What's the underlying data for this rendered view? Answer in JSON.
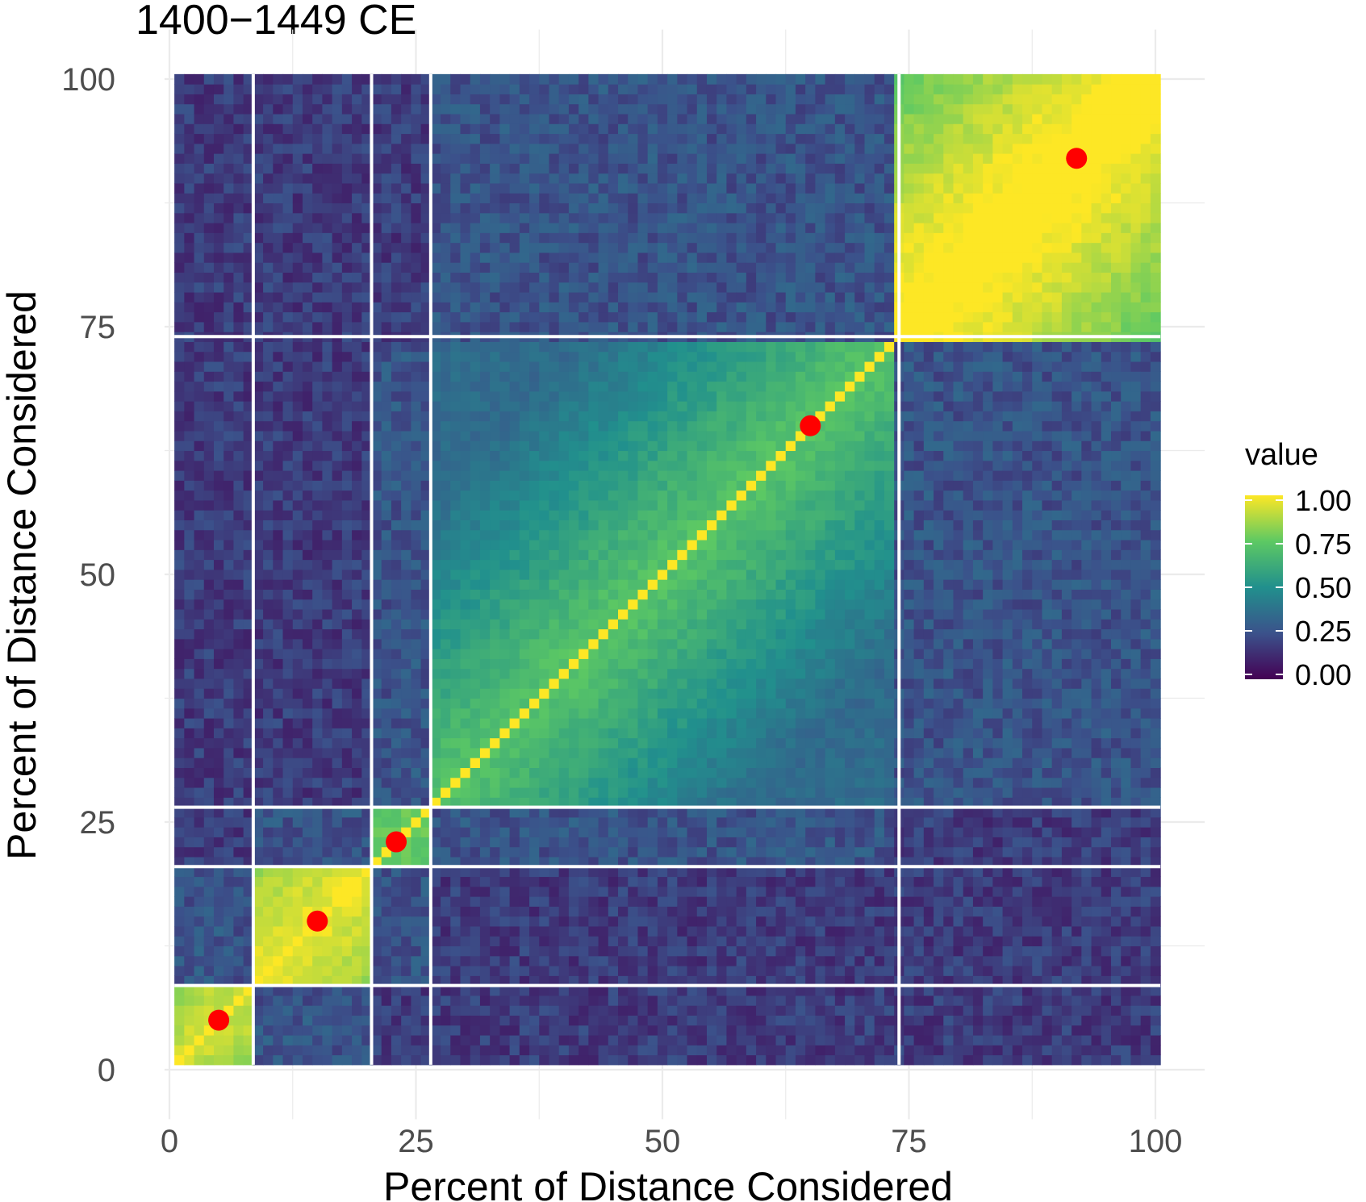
{
  "chart_data": {
    "type": "heatmap",
    "title": "1400−1449 CE",
    "xlabel": "Percent of Distance Considered",
    "ylabel": "Percent of Distance Considered",
    "xlim": [
      0,
      100
    ],
    "ylim": [
      0,
      100
    ],
    "x_ticks": [
      "0",
      "25",
      "50",
      "75",
      "100"
    ],
    "y_ticks": [
      "0",
      "25",
      "50",
      "75",
      "100"
    ],
    "grid": true,
    "cell_range": [
      1,
      100
    ],
    "segment_boundaries": [
      8.5,
      20.5,
      26.5,
      74
    ],
    "column_boundaries": [
      8.5,
      20.5,
      26.5,
      74
    ],
    "row_boundaries": [
      8.5,
      20.5,
      26.5,
      74
    ],
    "blocks": [
      {
        "range": [
          1,
          8.5
        ],
        "within_value": 0.75
      },
      {
        "range": [
          8.5,
          20.5
        ],
        "within_value": 0.8
      },
      {
        "range": [
          20.5,
          26.5
        ],
        "within_value": 0.6
      },
      {
        "range": [
          26.5,
          74
        ],
        "within_value": 0.55
      },
      {
        "range": [
          74,
          100
        ],
        "within_value": 0.88
      }
    ],
    "diagonal_value": 1.0,
    "representative_points": [
      {
        "x": 5,
        "y": 5
      },
      {
        "x": 15,
        "y": 15
      },
      {
        "x": 23,
        "y": 23
      },
      {
        "x": 65,
        "y": 65
      },
      {
        "x": 92,
        "y": 92
      }
    ],
    "legend": {
      "title": "value",
      "position": "right",
      "ticks": [
        "1.00",
        "0.75",
        "0.50",
        "0.25",
        "0.00"
      ],
      "range": [
        0,
        1
      ],
      "colormap": "viridis"
    },
    "colors": {
      "point": "#ff0000",
      "divider": "#ffffff",
      "gridline": "#ebebeb",
      "viridis_stops": [
        "#440154",
        "#3b528b",
        "#21908d",
        "#5dc963",
        "#fde725"
      ]
    }
  }
}
